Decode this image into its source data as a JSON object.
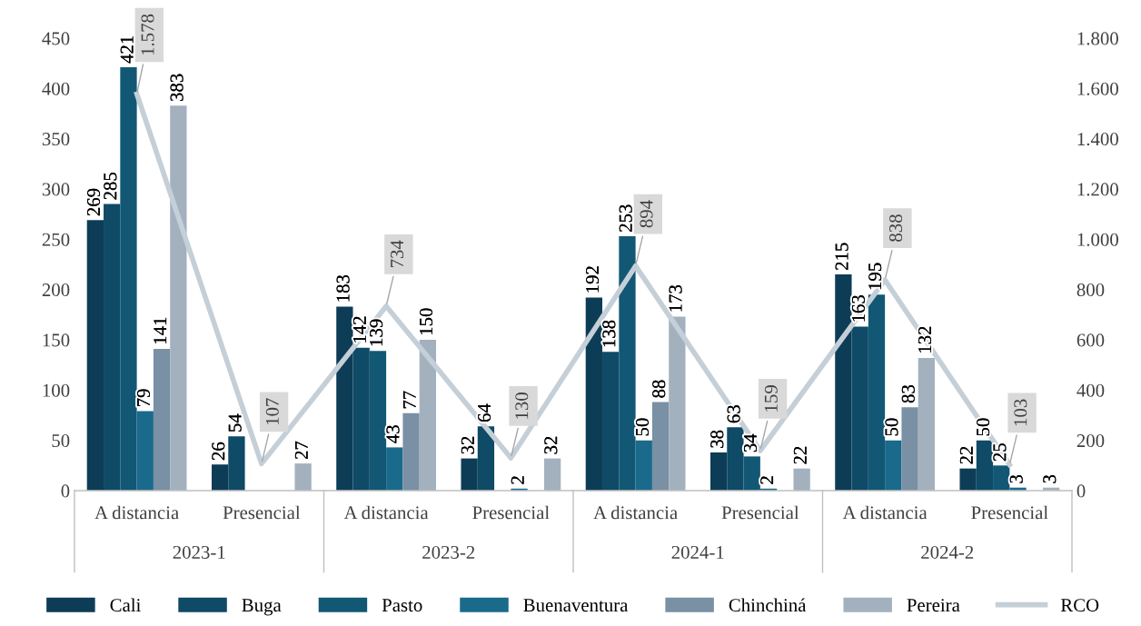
{
  "chart_data": {
    "type": "bar",
    "categories": [
      "A distancia",
      "Presencial",
      "A distancia",
      "Presencial",
      "A distancia",
      "Presencial",
      "A distancia",
      "Presencial"
    ],
    "annotations": [
      "2023-1",
      "2023-2",
      "2024-1",
      "2024-2"
    ],
    "series": [
      {
        "name": "Cali",
        "color": "#0d3d56",
        "values": [
          269,
          26,
          183,
          32,
          192,
          38,
          215,
          22
        ]
      },
      {
        "name": "Buga",
        "color": "#0f4a66",
        "values": [
          285,
          54,
          142,
          64,
          138,
          63,
          163,
          50
        ]
      },
      {
        "name": "Pasto",
        "color": "#125875",
        "values": [
          421,
          null,
          139,
          null,
          253,
          34,
          195,
          25
        ]
      },
      {
        "name": "Buenaventura",
        "color": "#1a6a8c",
        "values": [
          79,
          null,
          43,
          2,
          50,
          2,
          50,
          3
        ]
      },
      {
        "name": "Chinchiná",
        "color": "#7a90a4",
        "values": [
          141,
          null,
          77,
          null,
          88,
          null,
          83,
          null
        ]
      },
      {
        "name": "Pereira",
        "color": "#a3b1bf",
        "values": [
          383,
          27,
          150,
          32,
          173,
          22,
          132,
          3
        ]
      },
      {
        "name": "RCO",
        "type": "line",
        "axis": "y2",
        "color": "#c4cfd8",
        "values": [
          1578,
          107,
          734,
          130,
          894,
          159,
          838,
          103
        ],
        "value_labels": [
          "1.578",
          "107",
          "734",
          "130",
          "894",
          "159",
          "838",
          "103"
        ]
      }
    ],
    "ylim": [
      0,
      450
    ],
    "yticks": [
      0,
      50,
      100,
      150,
      200,
      250,
      300,
      350,
      400,
      450
    ],
    "y2lim": [
      0,
      1800
    ],
    "y2ticks": [
      0,
      {
        "value": 200,
        "label": "200"
      },
      400,
      600,
      800,
      {
        "value": 1000,
        "label": "1.000"
      },
      {
        "value": 1200,
        "label": "1.200"
      },
      {
        "value": 1400,
        "label": "1.400"
      },
      {
        "value": 1600,
        "label": "1.600"
      },
      {
        "value": 1800,
        "label": "1.800"
      }
    ],
    "data_labels": true,
    "legend": "bottom",
    "grid": false,
    "marker": "none"
  }
}
